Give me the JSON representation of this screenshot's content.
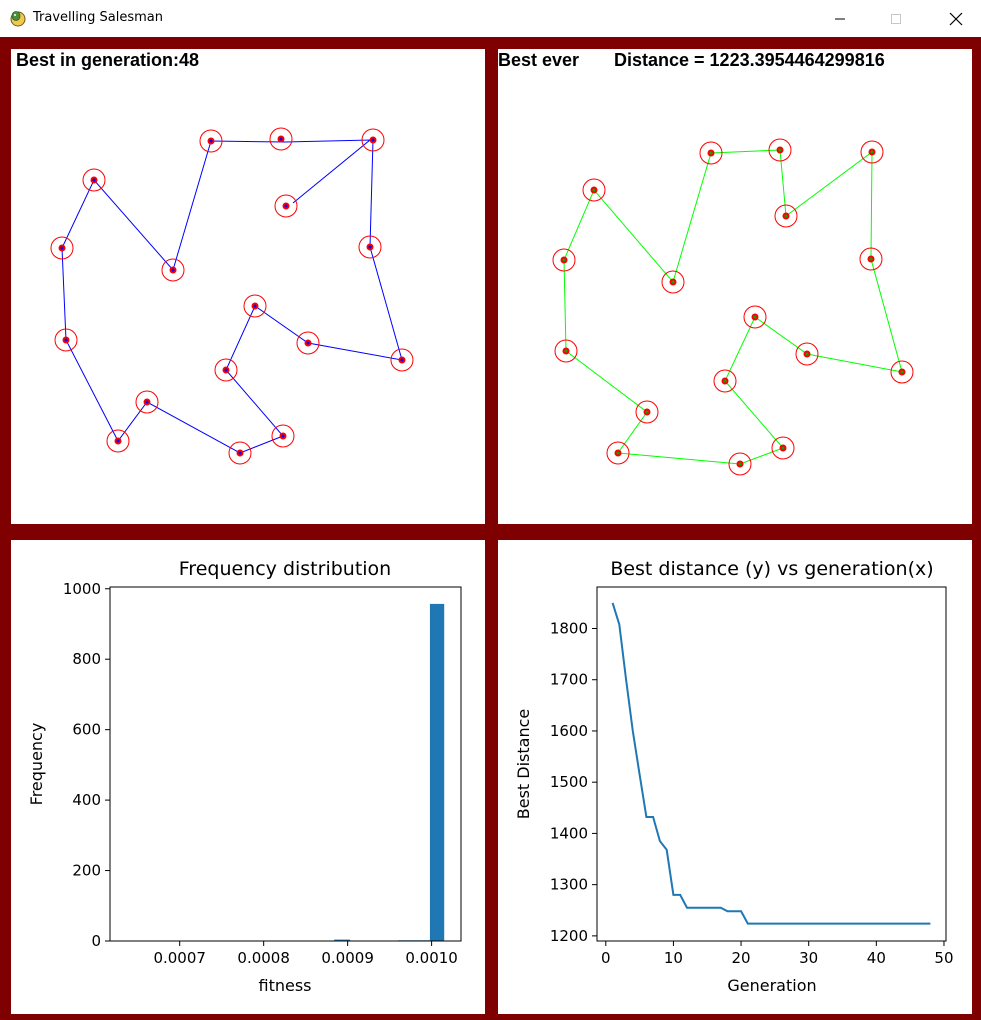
{
  "window": {
    "title": "Travelling Salesman",
    "app_icon": "python-snake-icon",
    "controls": {
      "minimize": "minimize-icon",
      "maximize": "maximize-icon",
      "close": "close-icon"
    }
  },
  "colors": {
    "frame": "#7f0000",
    "generation_route": "#0000ff",
    "best_route": "#00ff00",
    "city_marker": "#ff0000",
    "plot_series": "#1f77b4"
  },
  "panels": {
    "generation": {
      "label": "Best in generation:48"
    },
    "best": {
      "label_prefix": "Best ever",
      "label_distance": "Distance = 1223.3954464299816"
    }
  },
  "chart_data": [
    {
      "type": "bar",
      "title": "Frequency distribution",
      "xlabel": "fitness",
      "ylabel": "Frequency",
      "xlim": [
        0.000617,
        0.001035
      ],
      "ylim": [
        0,
        1005
      ],
      "xticks": [
        0.0007,
        0.0008,
        0.0009,
        0.001
      ],
      "xtick_labels": [
        "0.0007",
        "0.0008",
        "0.0009",
        "0.0010"
      ],
      "yticks": [
        0,
        200,
        400,
        600,
        800,
        1000
      ],
      "ytick_labels": [
        "0",
        "200",
        "400",
        "600",
        "800",
        "1000"
      ],
      "bins": [
        {
          "start": 0.000637,
          "end": 0.000656,
          "count": 1
        },
        {
          "start": 0.000656,
          "end": 0.000675,
          "count": 1
        },
        {
          "start": 0.000675,
          "end": 0.000694,
          "count": 1
        },
        {
          "start": 0.000694,
          "end": 0.000713,
          "count": 1
        },
        {
          "start": 0.000713,
          "end": 0.000732,
          "count": 1
        },
        {
          "start": 0.000732,
          "end": 0.000751,
          "count": 1
        },
        {
          "start": 0.000751,
          "end": 0.00077,
          "count": 1
        },
        {
          "start": 0.00077,
          "end": 0.000789,
          "count": 1
        },
        {
          "start": 0.000789,
          "end": 0.000808,
          "count": 1
        },
        {
          "start": 0.000808,
          "end": 0.000827,
          "count": 1
        },
        {
          "start": 0.000827,
          "end": 0.000846,
          "count": 1
        },
        {
          "start": 0.000846,
          "end": 0.000865,
          "count": 1
        },
        {
          "start": 0.000865,
          "end": 0.000884,
          "count": 1
        },
        {
          "start": 0.000884,
          "end": 0.000903,
          "count": 4
        },
        {
          "start": 0.000903,
          "end": 0.000922,
          "count": 1
        },
        {
          "start": 0.000922,
          "end": 0.000941,
          "count": 1
        },
        {
          "start": 0.000941,
          "end": 0.00096,
          "count": 1
        },
        {
          "start": 0.00096,
          "end": 0.000979,
          "count": 2
        },
        {
          "start": 0.000979,
          "end": 0.000998,
          "count": 2
        },
        {
          "start": 0.000998,
          "end": 0.001015,
          "count": 957
        }
      ]
    },
    {
      "type": "line",
      "title": "Best distance (y) vs generation(x)",
      "xlabel": "Generation",
      "ylabel": "Best Distance",
      "xlim": [
        -1.3,
        50.3
      ],
      "ylim": [
        1190,
        1881
      ],
      "xticks": [
        0,
        10,
        20,
        30,
        40,
        50
      ],
      "xtick_labels": [
        "0",
        "10",
        "20",
        "30",
        "40",
        "50"
      ],
      "yticks": [
        1200,
        1300,
        1400,
        1500,
        1600,
        1700,
        1800
      ],
      "ytick_labels": [
        "1200",
        "1300",
        "1400",
        "1500",
        "1600",
        "1700",
        "1800"
      ],
      "series": [
        {
          "x": [
            1,
            2,
            3,
            4,
            5,
            6,
            7,
            8,
            9,
            10,
            11,
            12,
            13,
            14,
            15,
            16,
            17,
            18,
            19,
            20,
            21,
            22,
            23,
            24,
            25,
            26,
            27,
            28,
            29,
            30,
            31,
            32,
            33,
            34,
            35,
            36,
            37,
            38,
            39,
            40,
            41,
            42,
            43,
            44,
            45,
            46,
            47,
            48
          ],
          "y": [
            1850,
            1808,
            1700,
            1600,
            1515,
            1432,
            1432,
            1385,
            1368,
            1280,
            1280,
            1255,
            1255,
            1255,
            1255,
            1255,
            1255,
            1248,
            1248,
            1248,
            1224,
            1224,
            1224,
            1224,
            1224,
            1224,
            1224,
            1224,
            1224,
            1224,
            1224,
            1224,
            1224,
            1224,
            1224,
            1224,
            1224,
            1224,
            1224,
            1224,
            1224,
            1224,
            1224,
            1224,
            1224,
            1224,
            1224,
            1224
          ]
        }
      ]
    }
  ]
}
